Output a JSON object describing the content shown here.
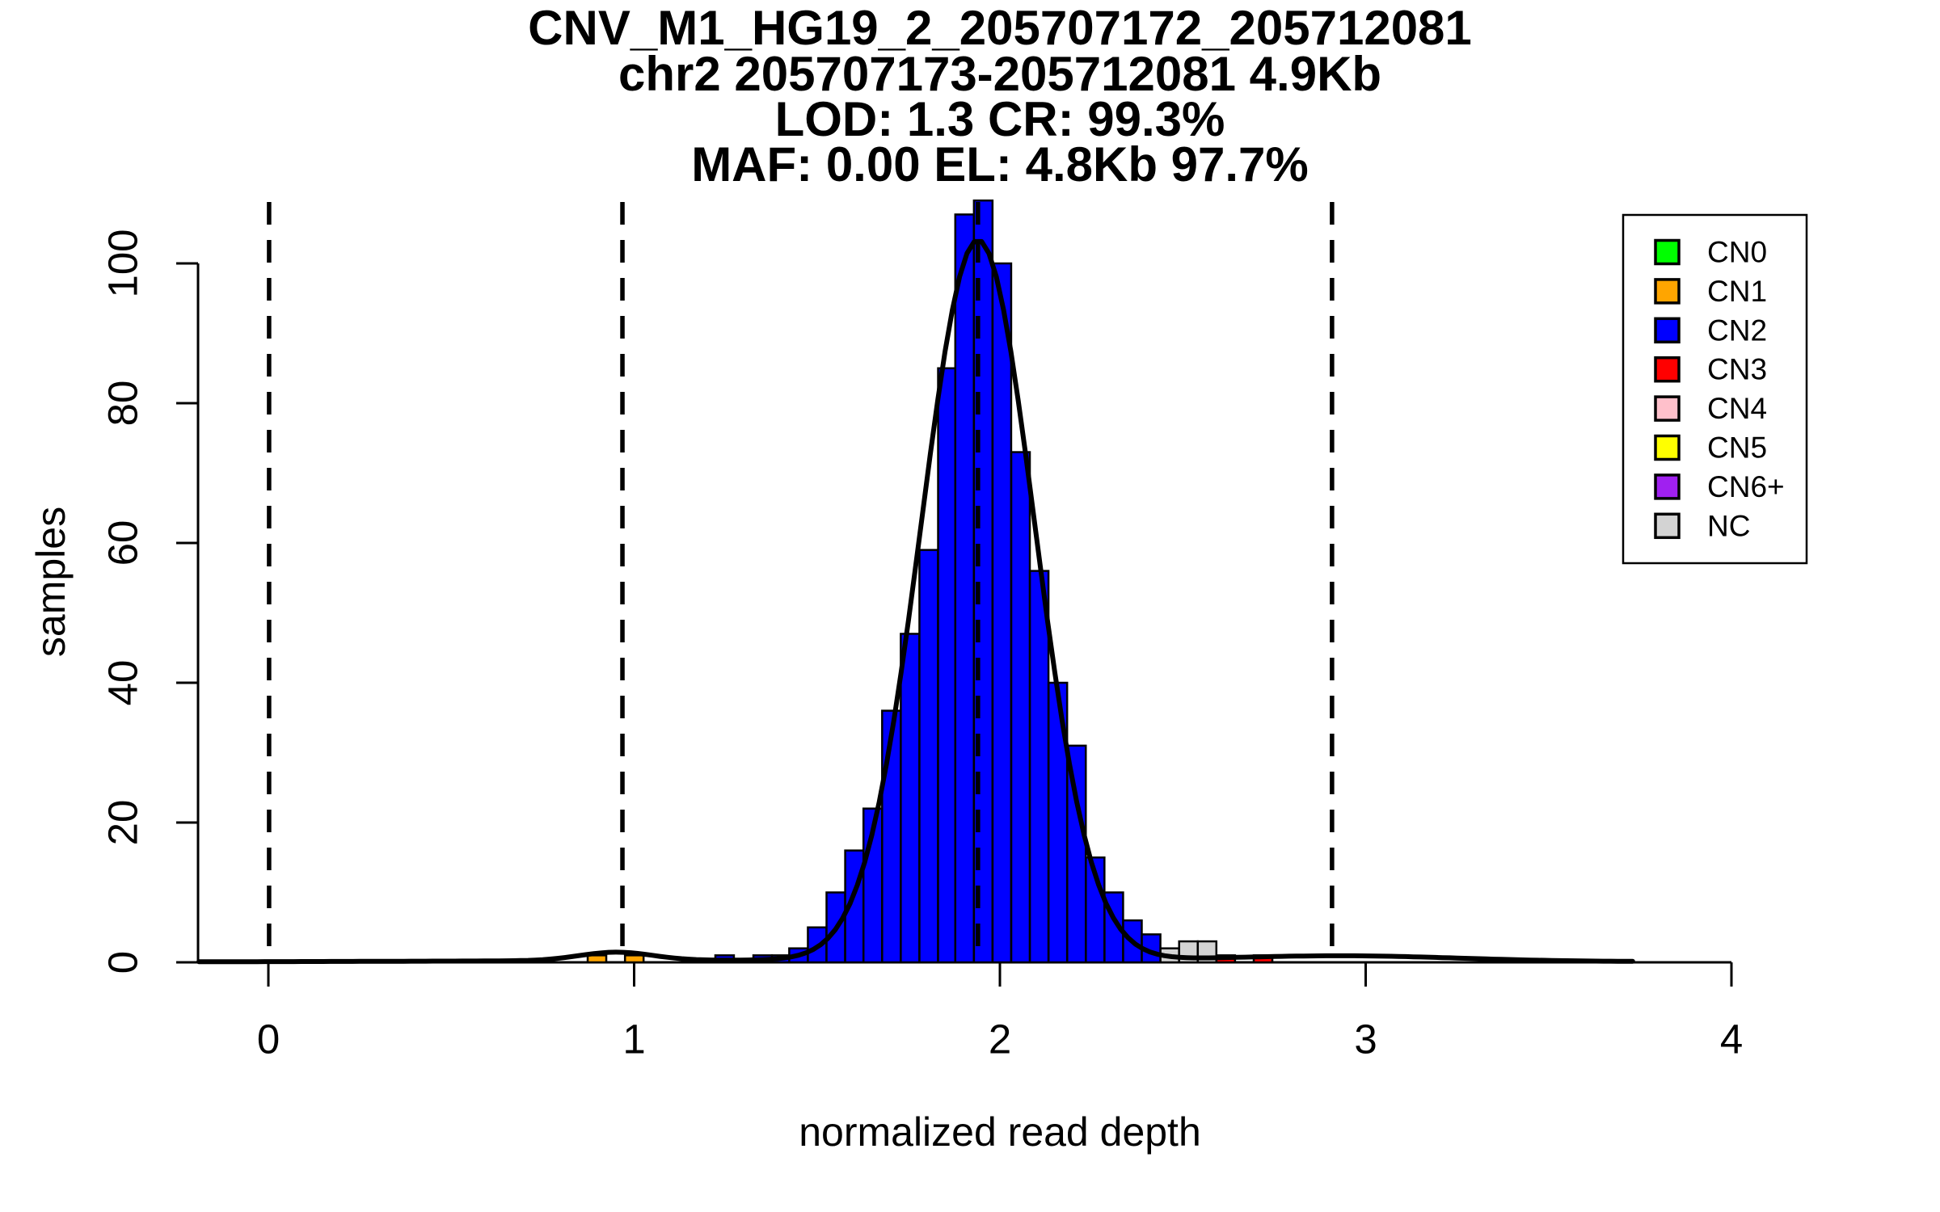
{
  "chart_data": {
    "type": "bar",
    "subtype": "histogram_with_density_fit",
    "title_lines": [
      "CNV_M1_HG19_2_205707172_205712081",
      "chr2 205707173-205712081 4.9Kb",
      "LOD: 1.3 CR: 99.3%",
      "MAF: 0.00 EL: 4.8Kb 97.7%"
    ],
    "stats_in_title": {
      "lod": "1.3",
      "cr": "99.3%",
      "maf": "0.00",
      "el": "4.8Kb",
      "el_pct": "97.7%"
    },
    "xlabel": "normalized read depth",
    "ylabel": "samples",
    "x_ticks": [
      0,
      1,
      2,
      3,
      4
    ],
    "y_ticks": [
      0,
      20,
      40,
      60,
      80,
      100
    ],
    "xlim": [
      -0.2,
      4.2
    ],
    "ylim": [
      0,
      109
    ],
    "grid": false,
    "bin_width": 0.0508,
    "bars": [
      {
        "x": 0.873,
        "count": 1,
        "cn": "CN1"
      },
      {
        "x": 0.975,
        "count": 1,
        "cn": "CN1"
      },
      {
        "x": 1.222,
        "count": 1,
        "cn": "CN2"
      },
      {
        "x": 1.326,
        "count": 1,
        "cn": "CN2"
      },
      {
        "x": 1.377,
        "count": 1,
        "cn": "CN2"
      },
      {
        "x": 1.424,
        "count": 2,
        "cn": "CN2"
      },
      {
        "x": 1.475,
        "count": 5,
        "cn": "CN2"
      },
      {
        "x": 1.526,
        "count": 10,
        "cn": "CN2"
      },
      {
        "x": 1.577,
        "count": 16,
        "cn": "CN2"
      },
      {
        "x": 1.627,
        "count": 22,
        "cn": "CN2"
      },
      {
        "x": 1.678,
        "count": 36,
        "cn": "CN2"
      },
      {
        "x": 1.729,
        "count": 47,
        "cn": "CN2"
      },
      {
        "x": 1.78,
        "count": 59,
        "cn": "CN2"
      },
      {
        "x": 1.831,
        "count": 85,
        "cn": "CN2"
      },
      {
        "x": 1.878,
        "count": 107,
        "cn": "CN2"
      },
      {
        "x": 1.929,
        "count": 109,
        "cn": "CN2"
      },
      {
        "x": 1.98,
        "count": 100,
        "cn": "CN2"
      },
      {
        "x": 2.031,
        "count": 73,
        "cn": "CN2"
      },
      {
        "x": 2.082,
        "count": 56,
        "cn": "CN2"
      },
      {
        "x": 2.133,
        "count": 40,
        "cn": "CN2"
      },
      {
        "x": 2.184,
        "count": 31,
        "cn": "CN2"
      },
      {
        "x": 2.235,
        "count": 15,
        "cn": "CN2"
      },
      {
        "x": 2.286,
        "count": 10,
        "cn": "CN2"
      },
      {
        "x": 2.337,
        "count": 6,
        "cn": "CN2"
      },
      {
        "x": 2.388,
        "count": 4,
        "cn": "CN2"
      },
      {
        "x": 2.439,
        "count": 2,
        "cn": "NC"
      },
      {
        "x": 2.49,
        "count": 3,
        "cn": "NC"
      },
      {
        "x": 2.541,
        "count": 3,
        "cn": "NC"
      },
      {
        "x": 2.592,
        "count": 1,
        "cn": "CN3"
      },
      {
        "x": 2.694,
        "count": 1,
        "cn": "CN3"
      }
    ],
    "dashed_vlines_x": [
      0.002,
      0.968,
      1.94,
      2.908
    ],
    "density_curve": {
      "x_range": [
        -0.19,
        3.73
      ],
      "components": [
        {
          "mean": 1.94,
          "sd": 0.155,
          "height": 103
        },
        {
          "mean": 0.95,
          "sd": 0.1,
          "height": 1.2
        },
        {
          "mean": 2.95,
          "sd": 0.3,
          "height": 0.7
        },
        {
          "mean": 1.9,
          "sd": 1.2,
          "height": 0.35
        }
      ]
    },
    "legend": {
      "position": "top-right",
      "entries": [
        {
          "label": "CN0",
          "color": "#00FF00"
        },
        {
          "label": "CN1",
          "color": "#FFA500"
        },
        {
          "label": "CN2",
          "color": "#0000FF"
        },
        {
          "label": "CN3",
          "color": "#FF0000"
        },
        {
          "label": "CN4",
          "color": "#FFC0CB"
        },
        {
          "label": "CN5",
          "color": "#FFFF00"
        },
        {
          "label": "CN6+",
          "color": "#A020F0"
        },
        {
          "label": "NC",
          "color": "#D3D3D3"
        }
      ]
    },
    "colors": {
      "histogram_main_fill": "#0000FF",
      "bar_border": "#000000",
      "curve": "#000000",
      "dashed_line": "#000000",
      "background": "#FFFFFF"
    }
  }
}
